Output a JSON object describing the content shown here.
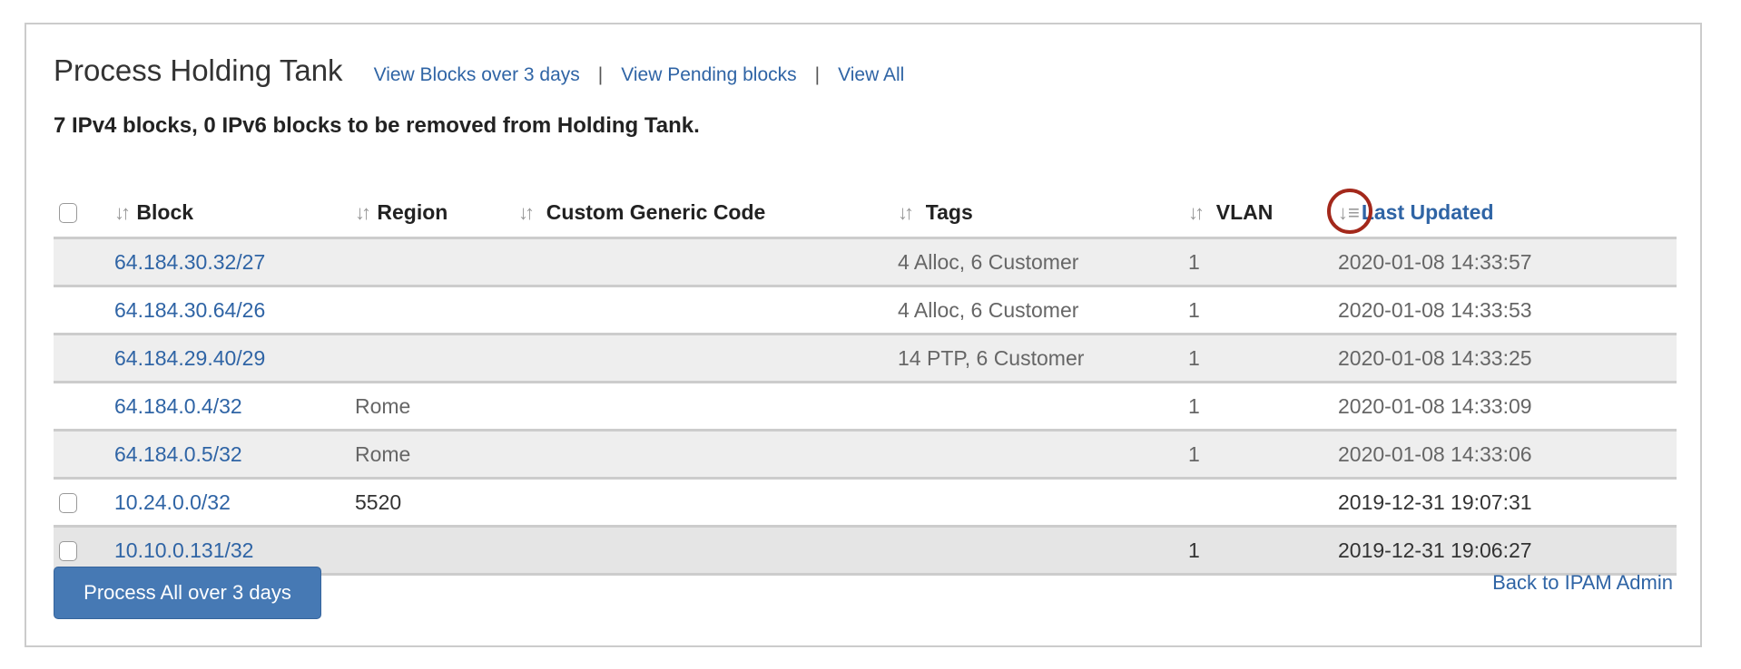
{
  "header": {
    "title": "Process Holding Tank",
    "links": [
      "View Blocks over 3 days",
      "View Pending blocks",
      "View All"
    ],
    "separator": "|"
  },
  "summary": "7 IPv4 blocks, 0 IPv6 blocks to be removed from Holding Tank.",
  "table": {
    "columns": [
      "Block",
      "Region",
      "Custom Generic Code",
      "Tags",
      "VLAN",
      "Last Updated"
    ],
    "sort_icon": "sort-both-icon",
    "sorted_icon": "sort-desc-icon",
    "sorted_column": "Last Updated",
    "rows": [
      {
        "block": "64.184.30.32/27",
        "region": "",
        "code": "",
        "tags": "4 Alloc, 6 Customer",
        "vlan": "1",
        "updated": "2020-01-08 14:33:57",
        "checkbox": false
      },
      {
        "block": "64.184.30.64/26",
        "region": "",
        "code": "",
        "tags": "4 Alloc, 6 Customer",
        "vlan": "1",
        "updated": "2020-01-08 14:33:53",
        "checkbox": false
      },
      {
        "block": "64.184.29.40/29",
        "region": "",
        "code": "",
        "tags": "14 PTP, 6 Customer",
        "vlan": "1",
        "updated": "2020-01-08 14:33:25",
        "checkbox": false
      },
      {
        "block": "64.184.0.4/32",
        "region": "Rome",
        "code": "",
        "tags": "",
        "vlan": "1",
        "updated": "2020-01-08 14:33:09",
        "checkbox": false
      },
      {
        "block": "64.184.0.5/32",
        "region": "Rome",
        "code": "",
        "tags": "",
        "vlan": "1",
        "updated": "2020-01-08 14:33:06",
        "checkbox": false
      },
      {
        "block": "10.24.0.0/32",
        "region": "5520",
        "code": "",
        "tags": "",
        "vlan": "",
        "updated": "2019-12-31 19:07:31",
        "checkbox": true
      },
      {
        "block": "10.10.0.131/32",
        "region": "",
        "code": "",
        "tags": "",
        "vlan": "1",
        "updated": "2019-12-31 19:06:27",
        "checkbox": true
      }
    ]
  },
  "actions": {
    "process_all": "Process All over 3 days",
    "back": "Back to IPAM Admin"
  },
  "colors": {
    "link": "#2f64a5",
    "muted_link": "#7a9cc8",
    "button": "#4679b4",
    "highlight_ring": "#a3281b"
  }
}
